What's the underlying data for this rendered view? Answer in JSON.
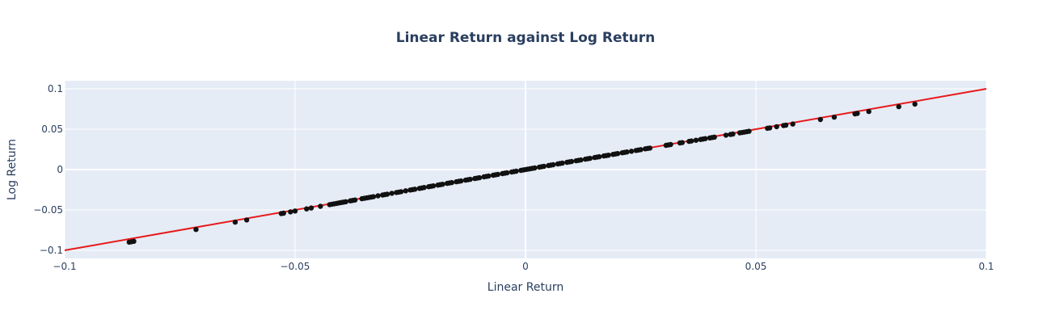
{
  "chart_data": {
    "type": "scatter",
    "title": "Linear Return against Log Return",
    "xlabel": "Linear Return",
    "ylabel": "Log Return",
    "xlim": [
      -0.1,
      0.1
    ],
    "ylim": [
      -0.11,
      0.11
    ],
    "x_ticks": [
      -0.1,
      -0.05,
      0,
      0.05,
      0.1
    ],
    "x_tick_labels": [
      "−0.1",
      "−0.05",
      "0",
      "0.05",
      "0.1"
    ],
    "y_ticks": [
      -0.1,
      -0.05,
      0,
      0.05,
      0.1
    ],
    "y_tick_labels": [
      "−0.1",
      "−0.05",
      "0",
      "0.05",
      "0.1"
    ],
    "grid": true,
    "colors": {
      "plot_bg": "#e5ecf6",
      "grid": "#ffffff",
      "points": "#111111",
      "line": "#e8191b",
      "text": "#2a3f5f"
    },
    "reference_line": {
      "x": [
        -0.1,
        0.1
      ],
      "y": [
        -0.1,
        0.1
      ]
    },
    "series": [
      {
        "x": [
          -0.086,
          -0.0855,
          -0.085,
          -0.0715,
          -0.063,
          -0.0605,
          -0.053,
          -0.0525,
          -0.051,
          -0.05,
          -0.0475,
          -0.0465,
          -0.0445,
          -0.0425,
          -0.042,
          -0.0415,
          -0.041,
          -0.0405,
          -0.04,
          -0.0395,
          -0.039,
          -0.038,
          -0.0375,
          -0.037,
          -0.0355,
          -0.035,
          -0.0345,
          -0.034,
          -0.0335,
          -0.033,
          -0.032,
          -0.031,
          -0.0305,
          -0.03,
          -0.029,
          -0.028,
          -0.0275,
          -0.027,
          -0.026,
          -0.025,
          -0.0245,
          -0.024,
          -0.023,
          -0.0225,
          -0.022,
          -0.021,
          -0.0205,
          -0.02,
          -0.019,
          -0.0185,
          -0.018,
          -0.017,
          -0.0165,
          -0.016,
          -0.015,
          -0.0145,
          -0.014,
          -0.013,
          -0.0125,
          -0.012,
          -0.011,
          -0.0105,
          -0.01,
          -0.009,
          -0.0085,
          -0.008,
          -0.007,
          -0.0065,
          -0.006,
          -0.005,
          -0.0045,
          -0.004,
          -0.003,
          -0.0025,
          -0.002,
          -0.001,
          -0.0005,
          0,
          0.0005,
          0.001,
          0.0015,
          0.002,
          0.003,
          0.0035,
          0.004,
          0.005,
          0.0055,
          0.006,
          0.007,
          0.0075,
          0.008,
          0.009,
          0.0095,
          0.01,
          0.011,
          0.0115,
          0.012,
          0.013,
          0.0135,
          0.014,
          0.015,
          0.0155,
          0.016,
          0.017,
          0.0175,
          0.018,
          0.019,
          0.0195,
          0.02,
          0.021,
          0.0215,
          0.022,
          0.023,
          0.024,
          0.0245,
          0.025,
          0.026,
          0.0265,
          0.027,
          0.0305,
          0.031,
          0.0315,
          0.0335,
          0.034,
          0.0355,
          0.036,
          0.037,
          0.038,
          0.0385,
          0.039,
          0.04,
          0.0405,
          0.041,
          0.0435,
          0.0445,
          0.045,
          0.0465,
          0.047,
          0.0475,
          0.048,
          0.0485,
          0.0525,
          0.053,
          0.0545,
          0.056,
          0.0565,
          0.058,
          0.064,
          0.067,
          0.0715,
          0.072,
          0.0745,
          0.081,
          0.0845
        ],
        "y": [
          -0.0899,
          -0.0894,
          -0.0888,
          -0.0742,
          -0.0651,
          -0.0624,
          -0.0545,
          -0.054,
          -0.0524,
          -0.0513,
          -0.0487,
          -0.0476,
          -0.0455,
          -0.0434,
          -0.0429,
          -0.0424,
          -0.0419,
          -0.0413,
          -0.0408,
          -0.0403,
          -0.0398,
          -0.0387,
          -0.0382,
          -0.0377,
          -0.0361,
          -0.0356,
          -0.0351,
          -0.0346,
          -0.0341,
          -0.0336,
          -0.0325,
          -0.0315,
          -0.031,
          -0.0305,
          -0.0294,
          -0.0284,
          -0.0279,
          -0.0274,
          -0.0263,
          -0.0253,
          -0.0248,
          -0.0243,
          -0.0233,
          -0.0228,
          -0.0222,
          -0.0212,
          -0.0207,
          -0.0202,
          -0.0192,
          -0.0187,
          -0.0182,
          -0.0171,
          -0.0166,
          -0.0161,
          -0.0151,
          -0.0146,
          -0.0141,
          -0.0131,
          -0.0126,
          -0.0121,
          -0.0111,
          -0.0106,
          -0.0101,
          -0.009,
          -0.0085,
          -0.008,
          -0.007,
          -0.0065,
          -0.006,
          -0.005,
          -0.0045,
          -0.004,
          -0.003,
          -0.0025,
          -0.002,
          -0.001,
          -0.0005,
          0,
          0.0005,
          0.001,
          0.0015,
          0.002,
          0.003,
          0.0035,
          0.004,
          0.005,
          0.0055,
          0.006,
          0.007,
          0.0075,
          0.008,
          0.009,
          0.0095,
          0.01,
          0.0109,
          0.0114,
          0.0119,
          0.0129,
          0.0134,
          0.0139,
          0.0149,
          0.0154,
          0.0159,
          0.0169,
          0.0173,
          0.0178,
          0.0188,
          0.0193,
          0.0198,
          0.0208,
          0.0213,
          0.0218,
          0.0227,
          0.0237,
          0.0242,
          0.0247,
          0.0257,
          0.0262,
          0.0266,
          0.03,
          0.0305,
          0.031,
          0.033,
          0.0334,
          0.0349,
          0.0354,
          0.0363,
          0.0373,
          0.0378,
          0.0383,
          0.0392,
          0.0397,
          0.0402,
          0.0426,
          0.0435,
          0.044,
          0.0455,
          0.0459,
          0.0464,
          0.0469,
          0.0474,
          0.0512,
          0.0516,
          0.0531,
          0.0545,
          0.055,
          0.0564,
          0.062,
          0.0649,
          0.069,
          0.0695,
          0.0719,
          0.0779,
          0.0811
        ]
      }
    ]
  }
}
